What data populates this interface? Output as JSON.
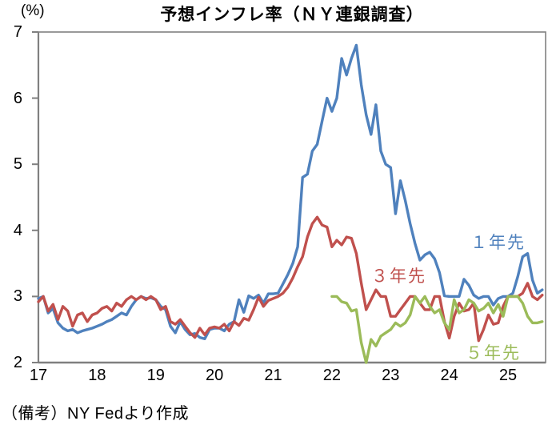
{
  "chart": {
    "title": "予想インフレ率（ＮＹ連銀調査）",
    "y_axis_unit_label": "(%)",
    "note": "（備考）NY Fedより作成",
    "colors": {
      "one_year": "#4F81BD",
      "three_year": "#C0504D",
      "five_year": "#9BBB59",
      "axis": "#808080",
      "text": "#000000",
      "background": "#FFFFFF"
    }
  },
  "chart_data": {
    "type": "line",
    "title": "予想インフレ率（ＮＹ連銀調査）",
    "ylabel": "(%)",
    "ylim": [
      2,
      7
    ],
    "yticks": [
      2,
      3,
      4,
      5,
      6,
      7
    ],
    "xtick_labels": [
      "17",
      "18",
      "19",
      "20",
      "21",
      "22",
      "23",
      "24",
      "25"
    ],
    "x_start": "2017-01",
    "x_frequency": "monthly",
    "grid": false,
    "legend_position": "inline-labels-on-plot",
    "series": [
      {
        "key": "one-year-ahead",
        "name": "１年先",
        "color": "#4F81BD",
        "start_offset_months": 0,
        "values": [
          2.97,
          3.0,
          2.75,
          2.82,
          2.6,
          2.52,
          2.48,
          2.5,
          2.45,
          2.48,
          2.5,
          2.52,
          2.55,
          2.58,
          2.62,
          2.65,
          2.7,
          2.75,
          2.72,
          2.85,
          2.95,
          3.0,
          2.97,
          2.98,
          2.95,
          2.85,
          2.8,
          2.55,
          2.45,
          2.62,
          2.5,
          2.42,
          2.44,
          2.38,
          2.36,
          2.5,
          2.52,
          2.52,
          2.48,
          2.58,
          2.62,
          2.95,
          2.76,
          3.01,
          2.97,
          3.02,
          2.9,
          3.04,
          3.04,
          3.05,
          3.19,
          3.33,
          3.5,
          3.75,
          4.8,
          4.85,
          5.2,
          5.3,
          5.65,
          6.0,
          5.8,
          6.0,
          6.6,
          6.35,
          6.6,
          6.8,
          6.2,
          5.75,
          5.45,
          5.9,
          5.2,
          5.0,
          4.95,
          4.25,
          4.75,
          4.45,
          4.1,
          3.8,
          3.55,
          3.63,
          3.67,
          3.57,
          3.36,
          3.01,
          3.0,
          3.0,
          3.0,
          3.26,
          3.17,
          3.02,
          2.97,
          3.0,
          3.0,
          2.87,
          2.97,
          3.0,
          3.0,
          3.05,
          3.3,
          3.6,
          3.65,
          3.25,
          3.05,
          3.1
        ]
      },
      {
        "key": "three-year-ahead",
        "name": "３年先",
        "color": "#C0504D",
        "start_offset_months": 0,
        "values": [
          2.92,
          3.0,
          2.78,
          2.88,
          2.65,
          2.85,
          2.78,
          2.55,
          2.72,
          2.75,
          2.62,
          2.72,
          2.75,
          2.82,
          2.85,
          2.78,
          2.9,
          2.85,
          2.95,
          3.0,
          2.95,
          3.0,
          2.95,
          3.0,
          2.95,
          2.8,
          2.85,
          2.62,
          2.58,
          2.65,
          2.55,
          2.45,
          2.38,
          2.52,
          2.42,
          2.52,
          2.54,
          2.52,
          2.58,
          2.48,
          2.62,
          2.56,
          2.67,
          2.64,
          2.8,
          2.99,
          2.85,
          2.94,
          2.97,
          3.0,
          3.05,
          3.14,
          3.28,
          3.45,
          3.6,
          3.9,
          4.1,
          4.2,
          4.08,
          4.05,
          3.75,
          3.85,
          3.78,
          3.9,
          3.88,
          3.65,
          3.2,
          2.8,
          2.95,
          3.1,
          3.0,
          3.0,
          2.7,
          2.7,
          2.8,
          2.9,
          3.0,
          3.0,
          2.9,
          2.8,
          2.8,
          3.0,
          3.0,
          2.62,
          2.37,
          2.7,
          2.9,
          2.78,
          2.8,
          2.9,
          2.33,
          2.5,
          2.72,
          2.58,
          2.6,
          2.85,
          3.0,
          3.0,
          3.0,
          3.05,
          3.2,
          3.0,
          2.95,
          3.02
        ]
      },
      {
        "key": "five-year-ahead",
        "name": "５年先",
        "color": "#9BBB59",
        "start_offset_months": 60,
        "values": [
          3.0,
          3.0,
          2.92,
          2.9,
          2.78,
          2.8,
          2.3,
          2.0,
          2.35,
          2.25,
          2.4,
          2.45,
          2.5,
          2.6,
          2.55,
          2.6,
          2.72,
          3.0,
          2.9,
          3.0,
          2.85,
          2.75,
          2.8,
          2.6,
          2.5,
          2.95,
          2.75,
          2.8,
          2.95,
          2.9,
          2.78,
          2.82,
          2.9,
          2.75,
          2.88,
          2.7,
          3.0,
          3.0,
          3.0,
          2.9,
          2.7,
          2.6,
          2.6,
          2.62
        ]
      }
    ]
  }
}
